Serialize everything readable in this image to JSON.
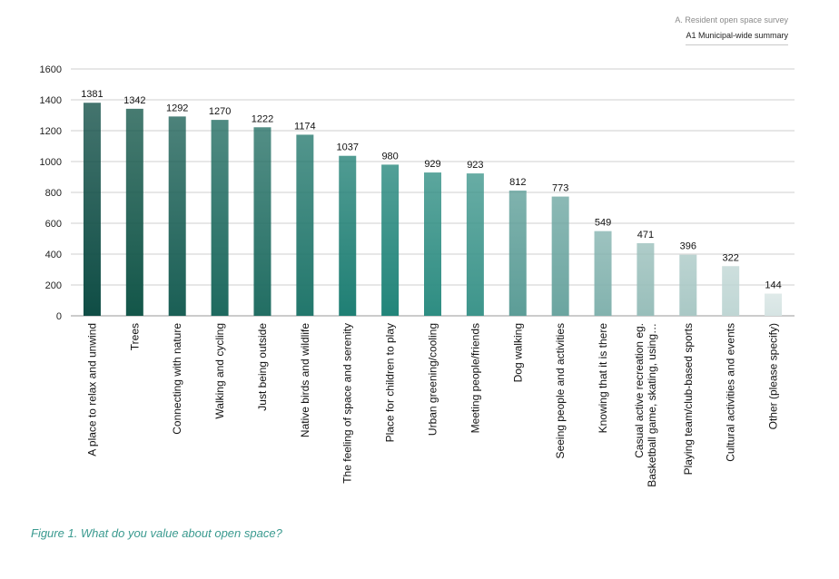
{
  "header": {
    "section": "A. Resident open space survey",
    "subtitle": "A1 Municipal-wide summary"
  },
  "caption": "Figure 1. What do you value about open space?",
  "chart_data": {
    "type": "bar",
    "categories": [
      "A place to relax and unwind",
      "Trees",
      "Connecting with nature",
      "Walking and cycling",
      "Just being outside",
      "Native birds and wildlife",
      "The feeling of space and serenity",
      "Place for children to play",
      "Urban greening/cooling",
      "Meeting people/friends",
      "Dog walking",
      "Seeing people and activities",
      "Knowing that it is there",
      [
        "Casual active recreation eg.",
        "Basketball game, skating, using…"
      ],
      "Playing team/club-based sports",
      "Cultural activities and events",
      "Other (please specify)"
    ],
    "values": [
      1381,
      1342,
      1292,
      1270,
      1222,
      1174,
      1037,
      980,
      929,
      923,
      812,
      773,
      549,
      471,
      396,
      322,
      144
    ],
    "ylim": [
      0,
      1600
    ],
    "yticks": [
      0,
      200,
      400,
      600,
      800,
      1000,
      1200,
      1400,
      1600
    ],
    "grid": true,
    "xlabel": "",
    "ylabel": "",
    "colors": [
      "#0f4d45",
      "#135649",
      "#1a5f55",
      "#1e6a5f",
      "#226e63",
      "#22776c",
      "#1f7f74",
      "#22857a",
      "#2e8d82",
      "#3d958b",
      "#5c9d97",
      "#6ba5a0",
      "#82b2ae",
      "#98beba",
      "#a9c8c5",
      "#bfd6d4",
      "#d6e4e3"
    ]
  }
}
